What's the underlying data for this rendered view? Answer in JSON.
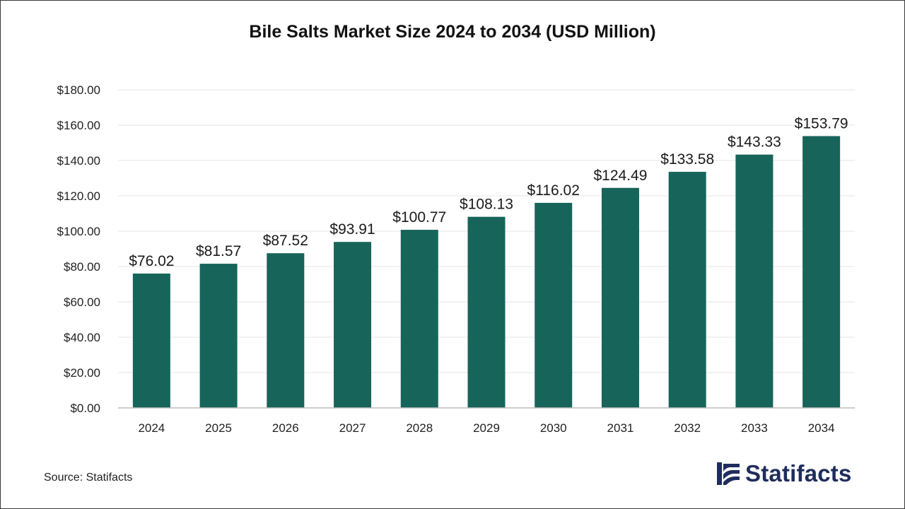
{
  "colors": {
    "bar": "#17645a",
    "grid": "#e6e6e6",
    "axis": "#bdbdbd",
    "text": "#222222",
    "brand": "#1f2d5c"
  },
  "source": "Source: Statifacts",
  "brand": {
    "name": "Statifacts",
    "icon": "statifacts-logo-icon"
  },
  "chart_data": {
    "type": "bar",
    "title": "Bile Salts Market Size 2024 to 2034 (USD Million)",
    "categories": [
      "2024",
      "2025",
      "2026",
      "2027",
      "2028",
      "2029",
      "2030",
      "2031",
      "2032",
      "2033",
      "2034"
    ],
    "values": [
      76.02,
      81.57,
      87.52,
      93.91,
      100.77,
      108.13,
      116.02,
      124.49,
      133.58,
      143.33,
      153.79
    ],
    "data_labels": [
      "$76.02",
      "$81.57",
      "$87.52",
      "$93.91",
      "$100.77",
      "$108.13",
      "$116.02",
      "$124.49",
      "$133.58",
      "$143.33",
      "$153.79"
    ],
    "yticks": [
      "$0.00",
      "$20.00",
      "$40.00",
      "$60.00",
      "$80.00",
      "$100.00",
      "$120.00",
      "$140.00",
      "$160.00",
      "$180.00"
    ],
    "ylim": [
      0,
      180
    ],
    "ystep": 20,
    "grid": true,
    "legend": "none"
  }
}
